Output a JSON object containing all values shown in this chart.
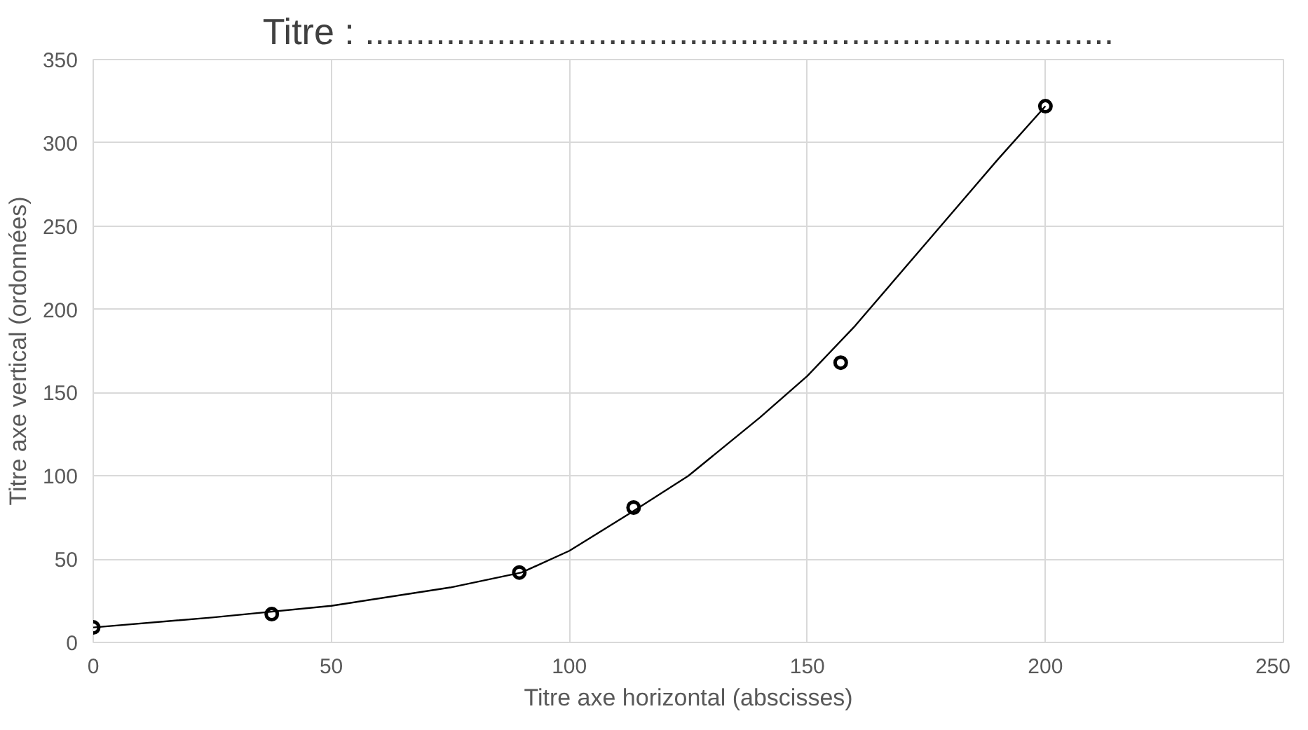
{
  "chart_data": {
    "type": "scatter",
    "title": "Titre : ..........................................................................",
    "xlabel": "Titre axe horizontal (abscisses)",
    "ylabel": "Titre axe vertical (ordonnées)",
    "series": [
      {
        "color": "#000000",
        "marker": "circle",
        "x": [
          0,
          37.5,
          89.5,
          113.5,
          157,
          200
        ],
        "values": [
          9,
          17,
          42,
          81,
          168,
          322
        ]
      },
      {
        "type": "line",
        "color": "#000000",
        "line_style": "solid",
        "x": [
          0,
          25,
          50,
          75,
          90,
          100,
          113,
          125,
          140,
          150,
          160,
          175,
          190,
          200
        ],
        "values": [
          9,
          15,
          22,
          33,
          42,
          55,
          78,
          100,
          135,
          160,
          190,
          240,
          290,
          322
        ]
      }
    ],
    "xlim": [
      0,
      250
    ],
    "xticks": [
      0,
      50,
      100,
      150,
      200,
      250
    ],
    "ylim": [
      0,
      350
    ],
    "yticks": [
      0,
      50,
      100,
      150,
      200,
      250,
      300,
      350
    ],
    "grid": true
  }
}
